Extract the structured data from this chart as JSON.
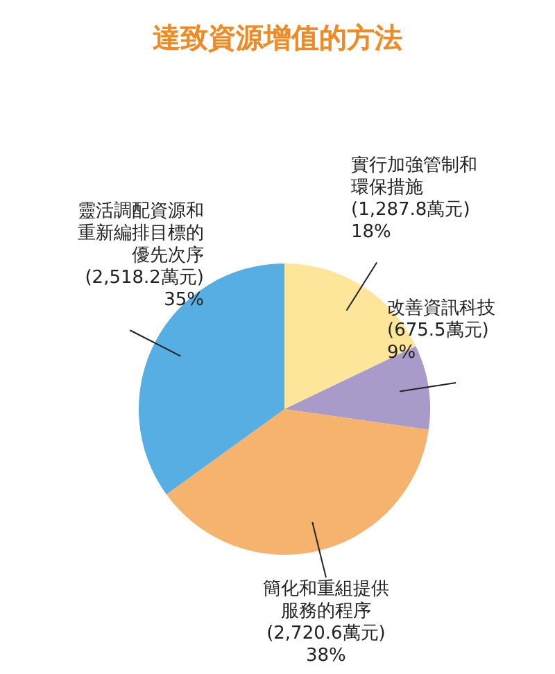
{
  "chart_data": {
    "type": "pie",
    "title": "達致資源增值的方法",
    "categories": [
      "實行加強管制和環保措施",
      "改善資訊科技",
      "簡化和重組提供服務的程序",
      "靈活調配資源和重新編排目標的優先次序"
    ],
    "values": [
      1287.8,
      675.5,
      2720.6,
      2518.2
    ],
    "value_labels": [
      "(1,287.8萬元)\n18%",
      "(675.5萬元)\n9%",
      "(2,720.6萬元)\n38%",
      "(2,518.2萬元)\n35%"
    ],
    "colors": [
      "#fde69a",
      "#a99bc9",
      "#f5b36e",
      "#57aee3"
    ],
    "legend": false
  }
}
